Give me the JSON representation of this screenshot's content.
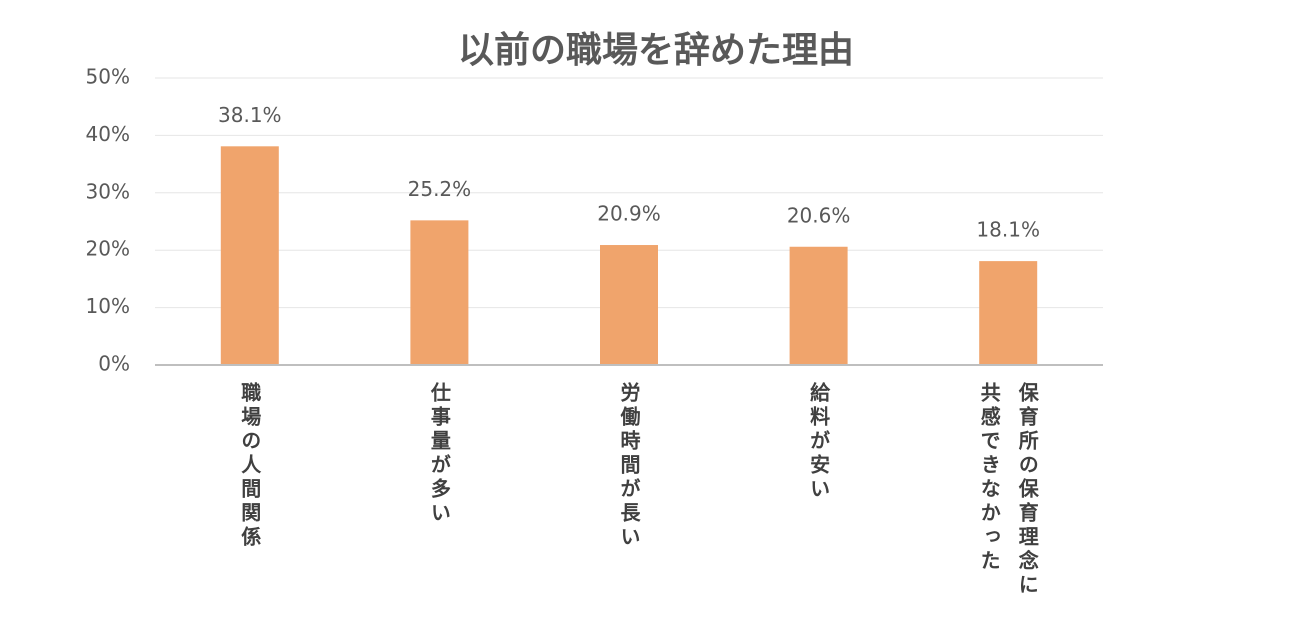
{
  "chart_data": {
    "type": "bar",
    "title": "以前の職場を辞めた理由",
    "categories": [
      "職場の人間関係",
      "仕事量が多い",
      "労働時間が長い",
      "給料が安い",
      "保育所の保育理念に共感できなかった"
    ],
    "values": [
      38.1,
      25.2,
      20.9,
      20.6,
      18.1
    ],
    "value_labels": [
      "38.1%",
      "25.2%",
      "20.9%",
      "20.6%",
      "18.1%"
    ],
    "color": "#f0a46c",
    "ylim": [
      0,
      50
    ],
    "yticks": [
      {
        "value": 0,
        "label": "0%"
      },
      {
        "value": 10,
        "label": "10%"
      },
      {
        "value": 20,
        "label": "20%"
      },
      {
        "value": 30,
        "label": "30%"
      },
      {
        "value": 40,
        "label": "40%"
      },
      {
        "value": 50,
        "label": "50%"
      }
    ],
    "grid": true
  }
}
